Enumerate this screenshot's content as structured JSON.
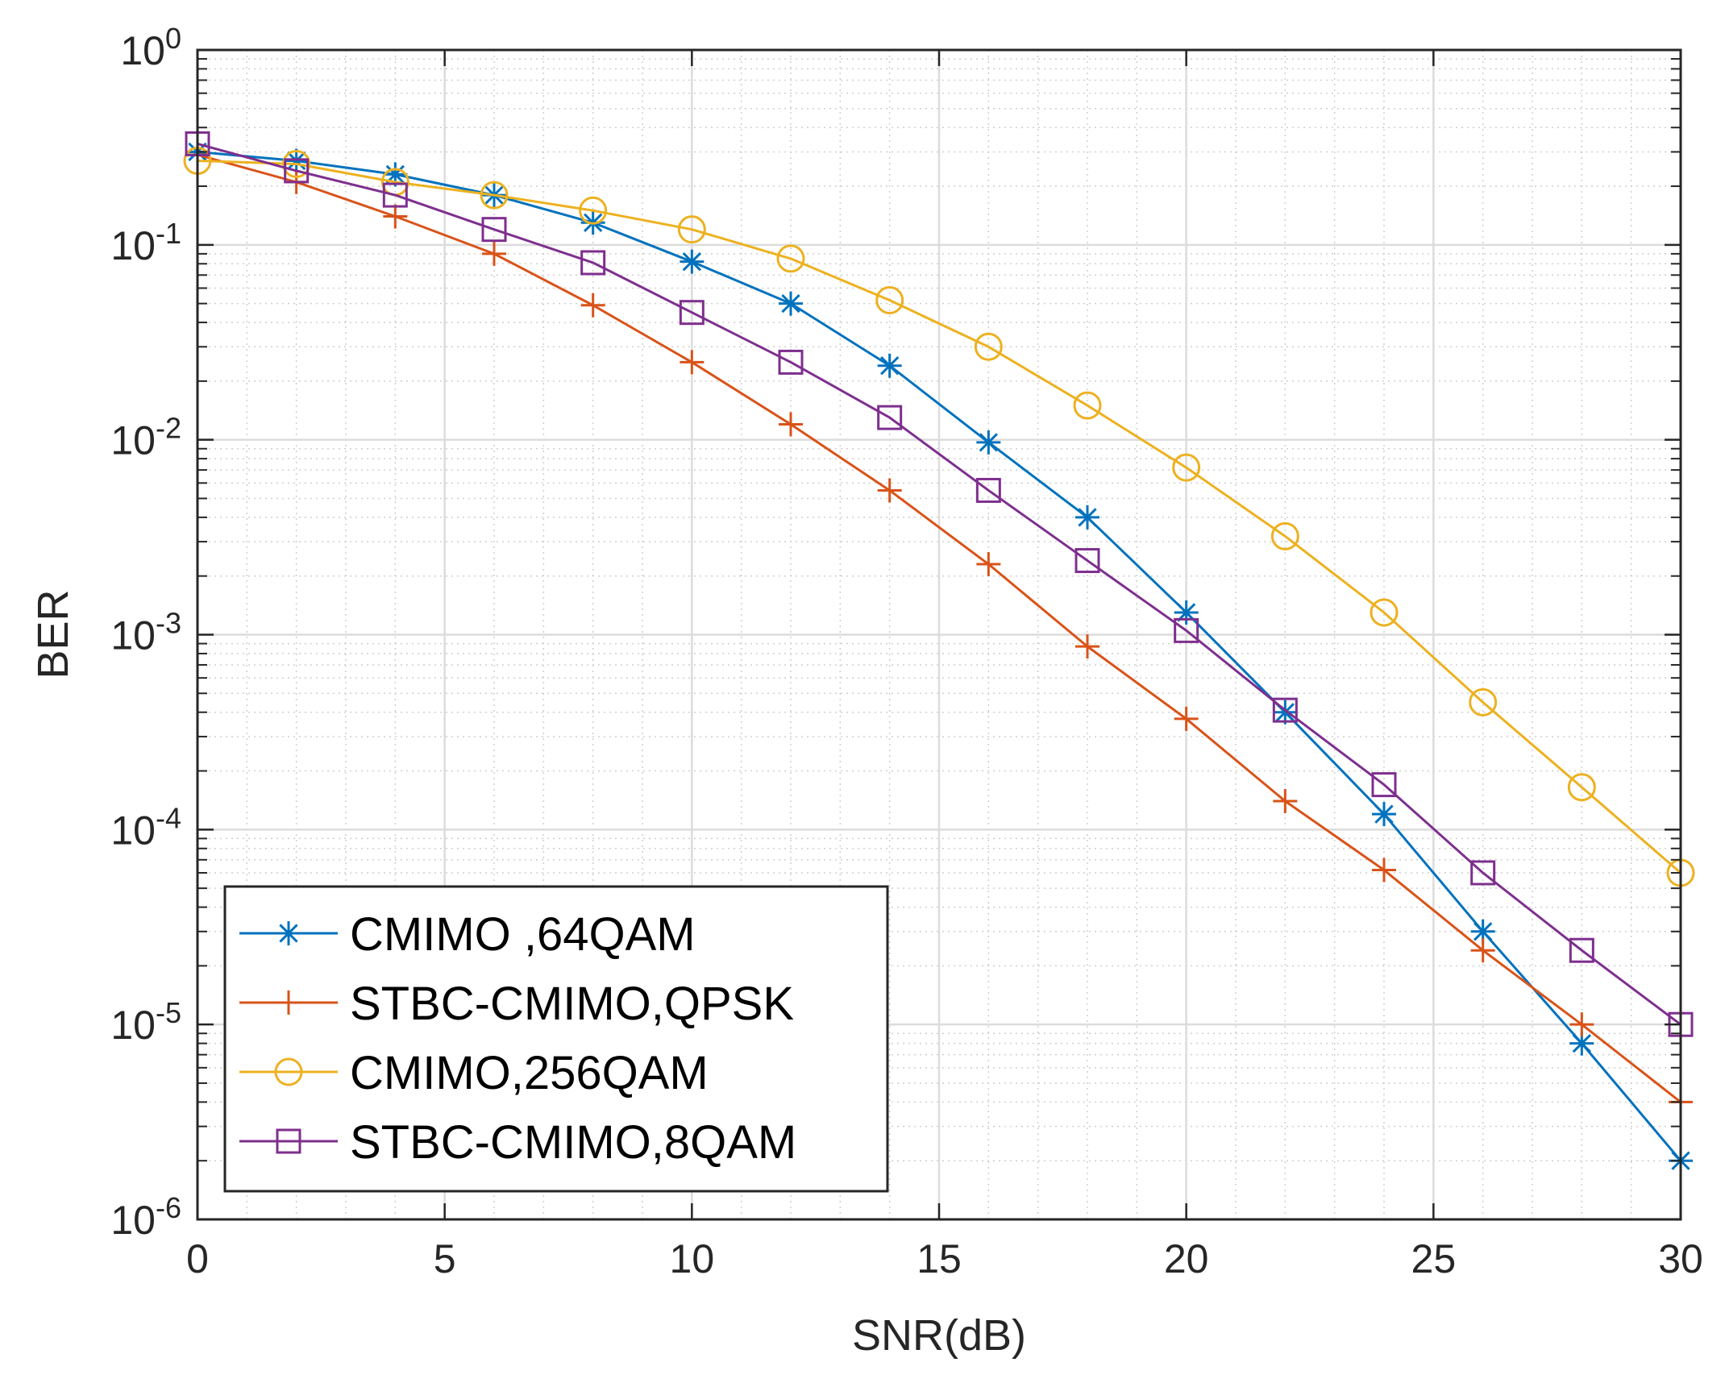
{
  "chart_data": {
    "type": "line",
    "title": "",
    "xlabel": "SNR(dB)",
    "ylabel": "BER",
    "x_scale": "linear",
    "y_scale": "log",
    "xlim": [
      0,
      30
    ],
    "ylim": [
      1e-06,
      1
    ],
    "grid": true,
    "minor_grid": true,
    "legend_location": "bottom-left",
    "x_ticks": [
      0,
      5,
      10,
      15,
      20,
      25,
      30
    ],
    "x_tick_labels": [
      "0",
      "5",
      "10",
      "15",
      "20",
      "25",
      "30"
    ],
    "y_ticks": [
      {
        "value": 1,
        "base": "10",
        "exp": "0"
      },
      {
        "value": 0.1,
        "base": "10",
        "exp": "-1"
      },
      {
        "value": 0.01,
        "base": "10",
        "exp": "-2"
      },
      {
        "value": 0.001,
        "base": "10",
        "exp": "-3"
      },
      {
        "value": 0.0001,
        "base": "10",
        "exp": "-4"
      },
      {
        "value": 1e-05,
        "base": "10",
        "exp": "-5"
      },
      {
        "value": 1e-06,
        "base": "10",
        "exp": "-6"
      }
    ],
    "x": [
      0,
      2,
      4,
      6,
      8,
      10,
      12,
      14,
      16,
      18,
      20,
      22,
      24,
      26,
      28,
      30
    ],
    "series": [
      {
        "name": "CMIMO ,64QAM",
        "color": "#0072BD",
        "marker": "asterisk",
        "values": [
          0.3,
          0.27,
          0.23,
          0.18,
          0.13,
          0.082,
          0.05,
          0.024,
          0.0097,
          0.004,
          0.0013,
          0.0004,
          0.00012,
          3e-05,
          8e-06,
          2e-06
        ]
      },
      {
        "name": "STBC-CMIMO,QPSK",
        "color": "#D95319",
        "marker": "plus",
        "values": [
          0.29,
          0.21,
          0.14,
          0.09,
          0.049,
          0.025,
          0.012,
          0.0055,
          0.0023,
          0.00087,
          0.00037,
          0.00014,
          6.2e-05,
          2.4e-05,
          1e-05,
          4e-06
        ]
      },
      {
        "name": "CMIMO,256QAM",
        "color": "#EDB120",
        "marker": "circle",
        "values": [
          0.27,
          0.26,
          0.21,
          0.18,
          0.15,
          0.12,
          0.085,
          0.052,
          0.03,
          0.015,
          0.0072,
          0.0032,
          0.0013,
          0.00045,
          0.000165,
          6e-05
        ]
      },
      {
        "name": "STBC-CMIMO,8QAM",
        "color": "#7E2F8E",
        "marker": "square",
        "values": [
          0.33,
          0.24,
          0.18,
          0.12,
          0.081,
          0.045,
          0.025,
          0.013,
          0.0055,
          0.0024,
          0.00105,
          0.00041,
          0.00017,
          6e-05,
          2.4e-05,
          1e-05
        ]
      }
    ]
  }
}
